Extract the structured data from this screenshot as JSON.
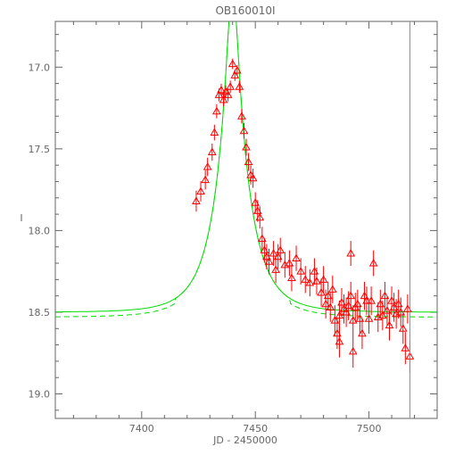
{
  "chart_data": {
    "type": "scatter",
    "title": "OB160010I",
    "xlabel": "JD - 2450000",
    "ylabel": "I",
    "xlim": [
      7362,
      7530
    ],
    "ylim": [
      19.15,
      16.72
    ],
    "y_inverted": true,
    "x_ticks": [
      7400,
      7450,
      7500
    ],
    "x_tick_labels": [
      "7400",
      "7450",
      "7500"
    ],
    "y_ticks": [
      17.0,
      17.5,
      18.0,
      18.5,
      19.0
    ],
    "y_tick_labels": [
      "17.0",
      "17.5",
      "18.0",
      "18.5",
      "19.0"
    ],
    "grid": false,
    "vertical_line_x": 7518,
    "colors": {
      "data": "#ff0000",
      "model": "#00dd00",
      "axis": "#666666",
      "vline": "#8888aa"
    },
    "series": [
      {
        "marker": "triangle-with-errorbar",
        "color": "#ff0000",
        "points": [
          [
            7424,
            17.82
          ],
          [
            7426,
            17.76
          ],
          [
            7428,
            17.69
          ],
          [
            7429,
            17.61
          ],
          [
            7431,
            17.52
          ],
          [
            7432,
            17.4
          ],
          [
            7433,
            17.27
          ],
          [
            7434,
            17.17
          ],
          [
            7435,
            17.14
          ],
          [
            7436,
            17.2
          ],
          [
            7437,
            17.15
          ],
          [
            7438,
            17.17
          ],
          [
            7439,
            17.12
          ],
          [
            7440,
            16.98
          ],
          [
            7441,
            17.05
          ],
          [
            7442,
            17.02
          ],
          [
            7443,
            17.12
          ],
          [
            7444,
            17.3
          ],
          [
            7445,
            17.39
          ],
          [
            7446,
            17.49
          ],
          [
            7447,
            17.58
          ],
          [
            7448,
            17.66
          ],
          [
            7449,
            17.68
          ],
          [
            7450,
            17.83
          ],
          [
            7451,
            17.88
          ],
          [
            7452,
            17.92
          ],
          [
            7453,
            18.05
          ],
          [
            7454,
            18.12
          ],
          [
            7455,
            18.16
          ],
          [
            7456,
            18.19
          ],
          [
            7458,
            18.14
          ],
          [
            7459,
            18.24
          ],
          [
            7460,
            18.16
          ],
          [
            7461,
            18.12
          ],
          [
            7463,
            18.21
          ],
          [
            7465,
            18.2
          ],
          [
            7466,
            18.29
          ],
          [
            7468,
            18.17
          ],
          [
            7470,
            18.25
          ],
          [
            7472,
            18.3
          ],
          [
            7474,
            18.32
          ],
          [
            7476,
            18.25
          ],
          [
            7477,
            18.31
          ],
          [
            7479,
            18.38
          ],
          [
            7480,
            18.3
          ],
          [
            7481,
            18.45
          ],
          [
            7482,
            18.4
          ],
          [
            7483,
            18.47
          ],
          [
            7484,
            18.36
          ],
          [
            7485,
            18.55
          ],
          [
            7486,
            18.63
          ],
          [
            7487,
            18.52
          ],
          [
            7487,
            18.68
          ],
          [
            7488,
            18.44
          ],
          [
            7489,
            18.48
          ],
          [
            7490,
            18.5
          ],
          [
            7491,
            18.46
          ],
          [
            7492,
            18.4
          ],
          [
            7492,
            18.14
          ],
          [
            7493,
            18.55
          ],
          [
            7493,
            18.74
          ],
          [
            7494,
            18.47
          ],
          [
            7495,
            18.45
          ],
          [
            7496,
            18.54
          ],
          [
            7497,
            18.63
          ],
          [
            7498,
            18.4
          ],
          [
            7499,
            18.43
          ],
          [
            7500,
            18.54
          ],
          [
            7501,
            18.43
          ],
          [
            7502,
            18.2
          ],
          [
            7504,
            18.53
          ],
          [
            7505,
            18.45
          ],
          [
            7506,
            18.52
          ],
          [
            7507,
            18.4
          ],
          [
            7508,
            18.49
          ],
          [
            7509,
            18.58
          ],
          [
            7510,
            18.43
          ],
          [
            7511,
            18.47
          ],
          [
            7512,
            18.51
          ],
          [
            7513,
            18.45
          ],
          [
            7514,
            18.5
          ],
          [
            7515,
            18.6
          ],
          [
            7516,
            18.72
          ],
          [
            7517,
            18.48
          ],
          [
            7518,
            18.77
          ]
        ]
      },
      {
        "name": "model",
        "style": "solid",
        "color": "#00dd00",
        "t0": 7440,
        "u0": 0.16,
        "tE": 14,
        "Is": 18.5
      },
      {
        "name": "model-b",
        "style": "dashed",
        "color": "#00dd00",
        "t0": 7440,
        "u0": 0.16,
        "tE": 14,
        "Is": 18.5
      }
    ]
  }
}
